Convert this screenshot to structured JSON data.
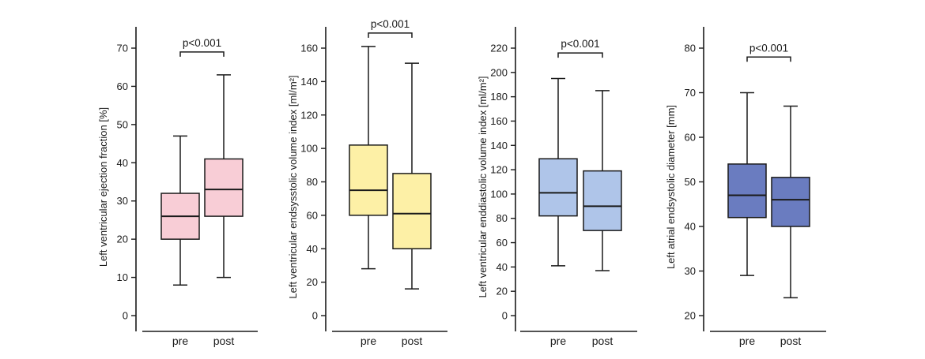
{
  "chart_data": [
    {
      "type": "box",
      "ylabel": "Left ventricular ejection fraction [%]",
      "ylim": [
        0,
        70
      ],
      "yticks": [
        0,
        10,
        20,
        30,
        40,
        50,
        60,
        70
      ],
      "categories": [
        "pre",
        "post"
      ],
      "color": "#f8cdd6",
      "boxes": [
        {
          "min": 8,
          "q1": 20,
          "median": 26,
          "q3": 32,
          "max": 47
        },
        {
          "min": 10,
          "q1": 26,
          "median": 33,
          "q3": 41,
          "max": 63
        }
      ],
      "significance": {
        "label": "p<0.001",
        "y": 69
      }
    },
    {
      "type": "box",
      "ylabel": "Left ventricular endsysstolic volume index [ml/m²]",
      "ylim": [
        0,
        160
      ],
      "yticks": [
        0,
        20,
        40,
        60,
        80,
        100,
        120,
        140,
        160
      ],
      "categories": [
        "pre",
        "post"
      ],
      "color": "#fdf0a6",
      "boxes": [
        {
          "min": 28,
          "q1": 60,
          "median": 75,
          "q3": 102,
          "max": 161
        },
        {
          "min": 16,
          "q1": 40,
          "median": 61,
          "q3": 85,
          "max": 151
        }
      ],
      "significance": {
        "label": "p<0.001",
        "y": 169
      }
    },
    {
      "type": "box",
      "ylabel": "Left ventricular enddiastolic volume index [ml/m²]",
      "ylim": [
        0,
        220
      ],
      "yticks": [
        0,
        20,
        40,
        60,
        80,
        100,
        120,
        140,
        160,
        180,
        200,
        220
      ],
      "categories": [
        "pre",
        "post"
      ],
      "color": "#afc5e9",
      "boxes": [
        {
          "min": 41,
          "q1": 82,
          "median": 101,
          "q3": 129,
          "max": 195
        },
        {
          "min": 37,
          "q1": 70,
          "median": 90,
          "q3": 119,
          "max": 185
        }
      ],
      "significance": {
        "label": "p<0.001",
        "y": 216
      }
    },
    {
      "type": "box",
      "ylabel": "Left atrial endsystolic diameter [mm]",
      "ylim": [
        20,
        80
      ],
      "yticks": [
        20,
        30,
        40,
        50,
        60,
        70,
        80
      ],
      "categories": [
        "pre",
        "post"
      ],
      "color": "#6a7cc0",
      "boxes": [
        {
          "min": 29,
          "q1": 42,
          "median": 47,
          "q3": 54,
          "max": 70
        },
        {
          "min": 24,
          "q1": 40,
          "median": 46,
          "q3": 51,
          "max": 67
        }
      ],
      "significance": {
        "label": "p<0.001",
        "y": 78
      }
    }
  ]
}
